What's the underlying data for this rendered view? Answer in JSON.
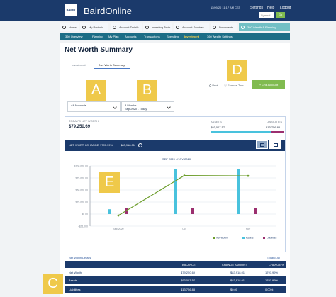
{
  "app": {
    "logo_text": "BAIRD",
    "name": "BairdOnline",
    "timestamp": "11/09/20 11:17 AM CST"
  },
  "header_links": {
    "settings": "Settings",
    "help": "Help",
    "logout": "Logout"
  },
  "search": {
    "placeholder": "Symbol",
    "go_label": "Go"
  },
  "main_nav": [
    {
      "label": "Home",
      "icon": "home-icon"
    },
    {
      "label": "My Portfolio",
      "icon": "briefcase-icon"
    },
    {
      "label": "Account Details",
      "icon": "document-icon"
    },
    {
      "label": "Investing Tools",
      "icon": "grid-icon"
    },
    {
      "label": "Account Services",
      "icon": "gear-icon"
    },
    {
      "label": "Documents",
      "icon": "folder-icon"
    },
    {
      "label": "360 Wealth & Planning",
      "icon": "chart-icon"
    }
  ],
  "sub_nav": [
    "360 Overview",
    "Planning",
    "My Plan",
    "Accounts",
    "Transactions",
    "Spending",
    "Investment",
    "360 Wealth Settings"
  ],
  "page": {
    "title": "Net Worth Summary",
    "tabs": [
      "Investment",
      "Net Worth Summary"
    ],
    "callouts": [
      "A",
      "B",
      "D",
      "E",
      "C"
    ],
    "print_label": "Print",
    "feature_tour_label": "Feature Tour",
    "link_account_label": "Link Account",
    "account_filter": "All Accounts",
    "period_line1": "3 Months",
    "period_line2": "Sep 2020 - Today"
  },
  "summary": {
    "today_label": "TODAY'S NET WORTH",
    "today_value": "$79,250.69",
    "assets_label": "ASSETS",
    "liabilities_label": "LIABILITIES",
    "assets_value": "$93,007.57",
    "liabilities_value": "$13,756.88",
    "assets_share": 0.87,
    "liabilities_share": 0.13
  },
  "chart_header": {
    "label": "NET WORTH CHANGE",
    "percent": "1797.99%",
    "amount": "$83,918.01"
  },
  "chart_data": {
    "type": "bar",
    "title": "SEP 2020 - NOV 2020",
    "categories": [
      "Sep 2020",
      "Oct",
      "Nov"
    ],
    "ylim": [
      -25000,
      100000
    ],
    "yticks": [
      -25000,
      0,
      25000,
      50000,
      75000,
      100000
    ],
    "ytick_labels": [
      "-$25,000",
      "$0.00",
      "$25,000.00",
      "$50,000.00",
      "$75,000.00",
      "$100,000.00"
    ],
    "xtick_labels": [
      "Sep 2020",
      "Oct",
      "Nov"
    ],
    "grid": true,
    "legend": [
      "Net Worth",
      "Assets",
      "Liabilities"
    ],
    "legend_position": "bottom-right",
    "series": [
      {
        "name": "Assets",
        "values": [
          10000,
          93000,
          93000
        ]
      },
      {
        "name": "Liabilities",
        "values": [
          13000,
          13000,
          13000
        ]
      },
      {
        "name": "Net Worth",
        "values": [
          -3000,
          80000,
          79250
        ]
      }
    ],
    "colors": {
      "assets": "#49c2dd",
      "liabilities": "#9b2f6f",
      "net_worth": "#6c9d2b",
      "grid": "#dbe3ec",
      "axis": "#7e8794"
    }
  },
  "details": {
    "title": "Net Worth Details",
    "expand_label": "Expand All",
    "headers": [
      "BALANCE",
      "CHANGE AMOUNT",
      "CHANGE %"
    ],
    "rows": [
      {
        "label": "Net Worth",
        "balance": "$79,250.69",
        "change_amount": "$83,918.01",
        "change_pct": "1797.99%"
      },
      {
        "label": "Assets",
        "balance": "$93,007.57",
        "change_amount": "$83,918.01",
        "change_pct": "1797.99%"
      },
      {
        "label": "Liabilities",
        "balance": "$13,756.88",
        "change_amount": "$0.00",
        "change_pct": "0.00%"
      }
    ]
  }
}
